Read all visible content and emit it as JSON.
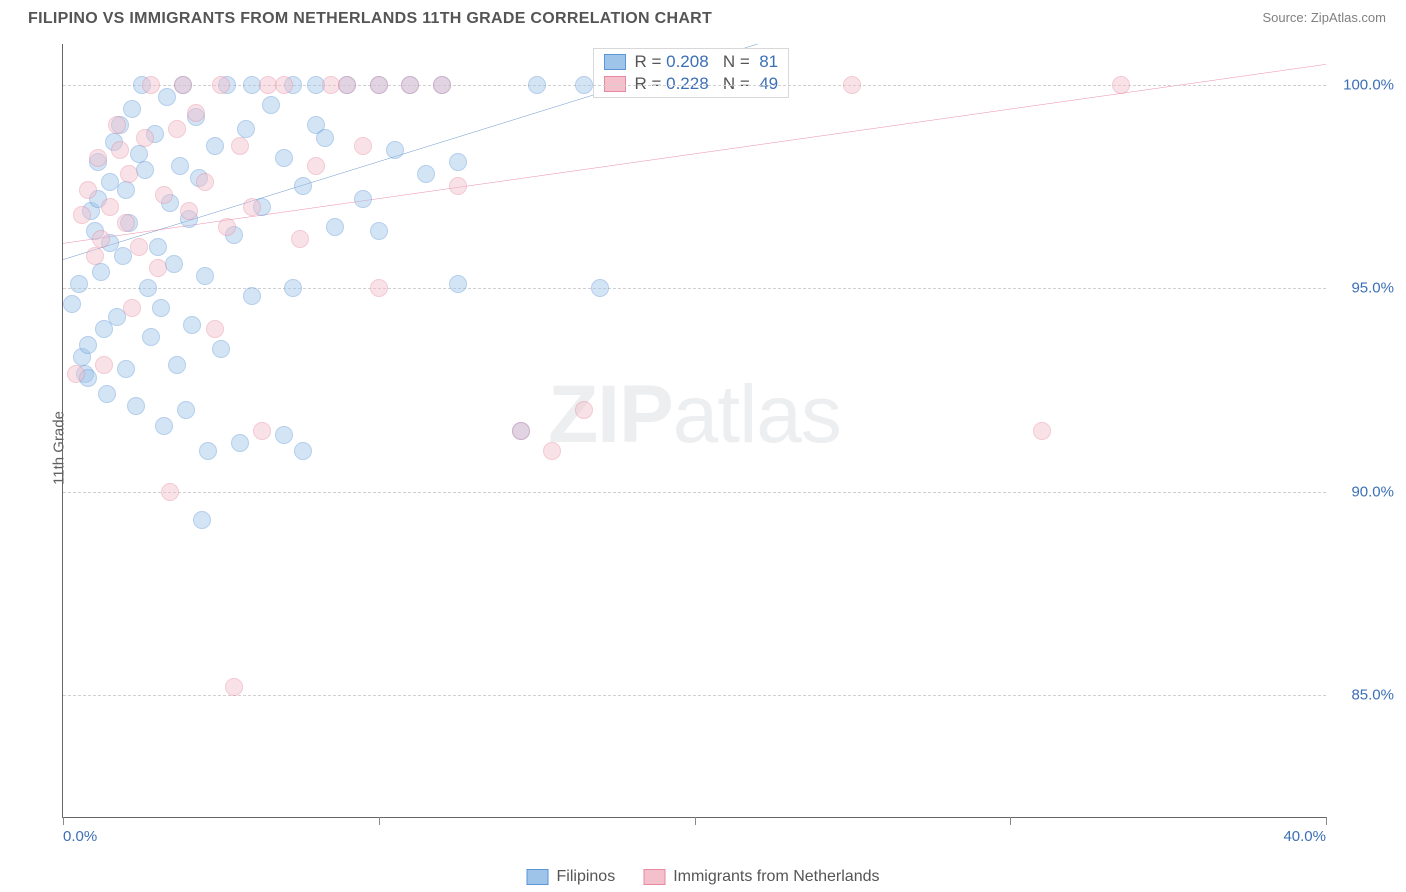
{
  "title": "FILIPINO VS IMMIGRANTS FROM NETHERLANDS 11TH GRADE CORRELATION CHART",
  "source_label": "Source: ",
  "source_name": "ZipAtlas.com",
  "ylabel": "11th Grade",
  "watermark_bold": "ZIP",
  "watermark_rest": "atlas",
  "chart": {
    "type": "scatter",
    "xlim": [
      0,
      40
    ],
    "ylim": [
      82,
      101
    ],
    "xtick_labels": {
      "0": "0.0%",
      "40": "40.0%"
    },
    "xtick_major": [
      0,
      10,
      20,
      30,
      40
    ],
    "ytick_labels": {
      "85": "85.0%",
      "90": "90.0%",
      "95": "95.0%",
      "100": "100.0%"
    },
    "grid_y": [
      85,
      90,
      95,
      100
    ],
    "grid_color": "#d0d0d0",
    "background_color": "#ffffff",
    "marker_radius": 9,
    "marker_opacity": 0.45,
    "series": [
      {
        "name": "filipinos",
        "label": "Filipinos",
        "color_fill": "#9ec4ea",
        "color_stroke": "#5a96d6",
        "line_color": "#2a68b5",
        "R": "0.208",
        "N": "81",
        "trend": {
          "x1": 0,
          "y1": 95.7,
          "x2": 22,
          "y2": 101
        },
        "points": [
          [
            0.3,
            94.6
          ],
          [
            0.5,
            95.1
          ],
          [
            0.6,
            93.3
          ],
          [
            0.7,
            92.9
          ],
          [
            0.8,
            92.8
          ],
          [
            0.8,
            93.6
          ],
          [
            0.9,
            96.9
          ],
          [
            1.0,
            96.4
          ],
          [
            1.1,
            97.2
          ],
          [
            1.1,
            98.1
          ],
          [
            1.2,
            95.4
          ],
          [
            1.3,
            94.0
          ],
          [
            1.4,
            92.4
          ],
          [
            1.5,
            97.6
          ],
          [
            1.5,
            96.1
          ],
          [
            1.6,
            98.6
          ],
          [
            1.7,
            94.3
          ],
          [
            1.8,
            99.0
          ],
          [
            1.9,
            95.8
          ],
          [
            2.0,
            97.4
          ],
          [
            2.0,
            93.0
          ],
          [
            2.1,
            96.6
          ],
          [
            2.2,
            99.4
          ],
          [
            2.3,
            92.1
          ],
          [
            2.4,
            98.3
          ],
          [
            2.5,
            100.0
          ],
          [
            2.6,
            97.9
          ],
          [
            2.7,
            95.0
          ],
          [
            2.8,
            93.8
          ],
          [
            2.9,
            98.8
          ],
          [
            3.0,
            96.0
          ],
          [
            3.1,
            94.5
          ],
          [
            3.2,
            91.6
          ],
          [
            3.3,
            99.7
          ],
          [
            3.4,
            97.1
          ],
          [
            3.5,
            95.6
          ],
          [
            3.6,
            93.1
          ],
          [
            3.7,
            98.0
          ],
          [
            3.8,
            100.0
          ],
          [
            3.9,
            92.0
          ],
          [
            4.0,
            96.7
          ],
          [
            4.1,
            94.1
          ],
          [
            4.2,
            99.2
          ],
          [
            4.3,
            97.7
          ],
          [
            4.4,
            89.3
          ],
          [
            4.5,
            95.3
          ],
          [
            4.6,
            91.0
          ],
          [
            4.8,
            98.5
          ],
          [
            5.0,
            93.5
          ],
          [
            5.2,
            100.0
          ],
          [
            5.4,
            96.3
          ],
          [
            5.6,
            91.2
          ],
          [
            5.8,
            98.9
          ],
          [
            6.0,
            94.8
          ],
          [
            6.0,
            100.0
          ],
          [
            6.3,
            97.0
          ],
          [
            6.6,
            99.5
          ],
          [
            7.0,
            98.2
          ],
          [
            7.0,
            91.4
          ],
          [
            7.3,
            95.0
          ],
          [
            7.3,
            100.0
          ],
          [
            7.6,
            97.5
          ],
          [
            7.6,
            91.0
          ],
          [
            8.0,
            99.0
          ],
          [
            8.0,
            100.0
          ],
          [
            8.3,
            98.7
          ],
          [
            8.6,
            96.5
          ],
          [
            9.0,
            100.0
          ],
          [
            9.5,
            97.2
          ],
          [
            10.0,
            100.0
          ],
          [
            10.0,
            96.4
          ],
          [
            10.5,
            98.4
          ],
          [
            11.0,
            100.0
          ],
          [
            11.5,
            97.8
          ],
          [
            12.0,
            100.0
          ],
          [
            12.5,
            98.1
          ],
          [
            12.5,
            95.1
          ],
          [
            14.5,
            91.5
          ],
          [
            15.0,
            100.0
          ],
          [
            16.5,
            100.0
          ],
          [
            17.0,
            95.0
          ]
        ]
      },
      {
        "name": "netherlands",
        "label": "Immigrants from Netherlands",
        "color_fill": "#f3c0cb",
        "color_stroke": "#e68aa0",
        "line_color": "#e05a88",
        "R": "0.228",
        "N": "49",
        "trend": {
          "x1": 0,
          "y1": 96.1,
          "x2": 40,
          "y2": 100.5
        },
        "points": [
          [
            0.4,
            92.9
          ],
          [
            0.6,
            96.8
          ],
          [
            0.8,
            97.4
          ],
          [
            1.0,
            95.8
          ],
          [
            1.1,
            98.2
          ],
          [
            1.2,
            96.2
          ],
          [
            1.3,
            93.1
          ],
          [
            1.5,
            97.0
          ],
          [
            1.7,
            99.0
          ],
          [
            1.8,
            98.4
          ],
          [
            2.0,
            96.6
          ],
          [
            2.1,
            97.8
          ],
          [
            2.2,
            94.5
          ],
          [
            2.4,
            96.0
          ],
          [
            2.6,
            98.7
          ],
          [
            2.8,
            100.0
          ],
          [
            3.0,
            95.5
          ],
          [
            3.2,
            97.3
          ],
          [
            3.4,
            90.0
          ],
          [
            3.6,
            98.9
          ],
          [
            3.8,
            100.0
          ],
          [
            4.0,
            96.9
          ],
          [
            4.2,
            99.3
          ],
          [
            4.5,
            97.6
          ],
          [
            4.8,
            94.0
          ],
          [
            5.0,
            100.0
          ],
          [
            5.2,
            96.5
          ],
          [
            5.4,
            85.2
          ],
          [
            5.6,
            98.5
          ],
          [
            6.0,
            97.0
          ],
          [
            6.3,
            91.5
          ],
          [
            6.5,
            100.0
          ],
          [
            7.0,
            100.0
          ],
          [
            7.5,
            96.2
          ],
          [
            8.0,
            98.0
          ],
          [
            8.5,
            100.0
          ],
          [
            9.0,
            100.0
          ],
          [
            9.5,
            98.5
          ],
          [
            10.0,
            95.0
          ],
          [
            10.0,
            100.0
          ],
          [
            11.0,
            100.0
          ],
          [
            12.0,
            100.0
          ],
          [
            12.5,
            97.5
          ],
          [
            14.5,
            91.5
          ],
          [
            15.5,
            91.0
          ],
          [
            16.5,
            92.0
          ],
          [
            25.0,
            100.0
          ],
          [
            31.0,
            91.5
          ],
          [
            33.5,
            100.0
          ]
        ]
      }
    ]
  },
  "legend_box_left_pct": 42
}
